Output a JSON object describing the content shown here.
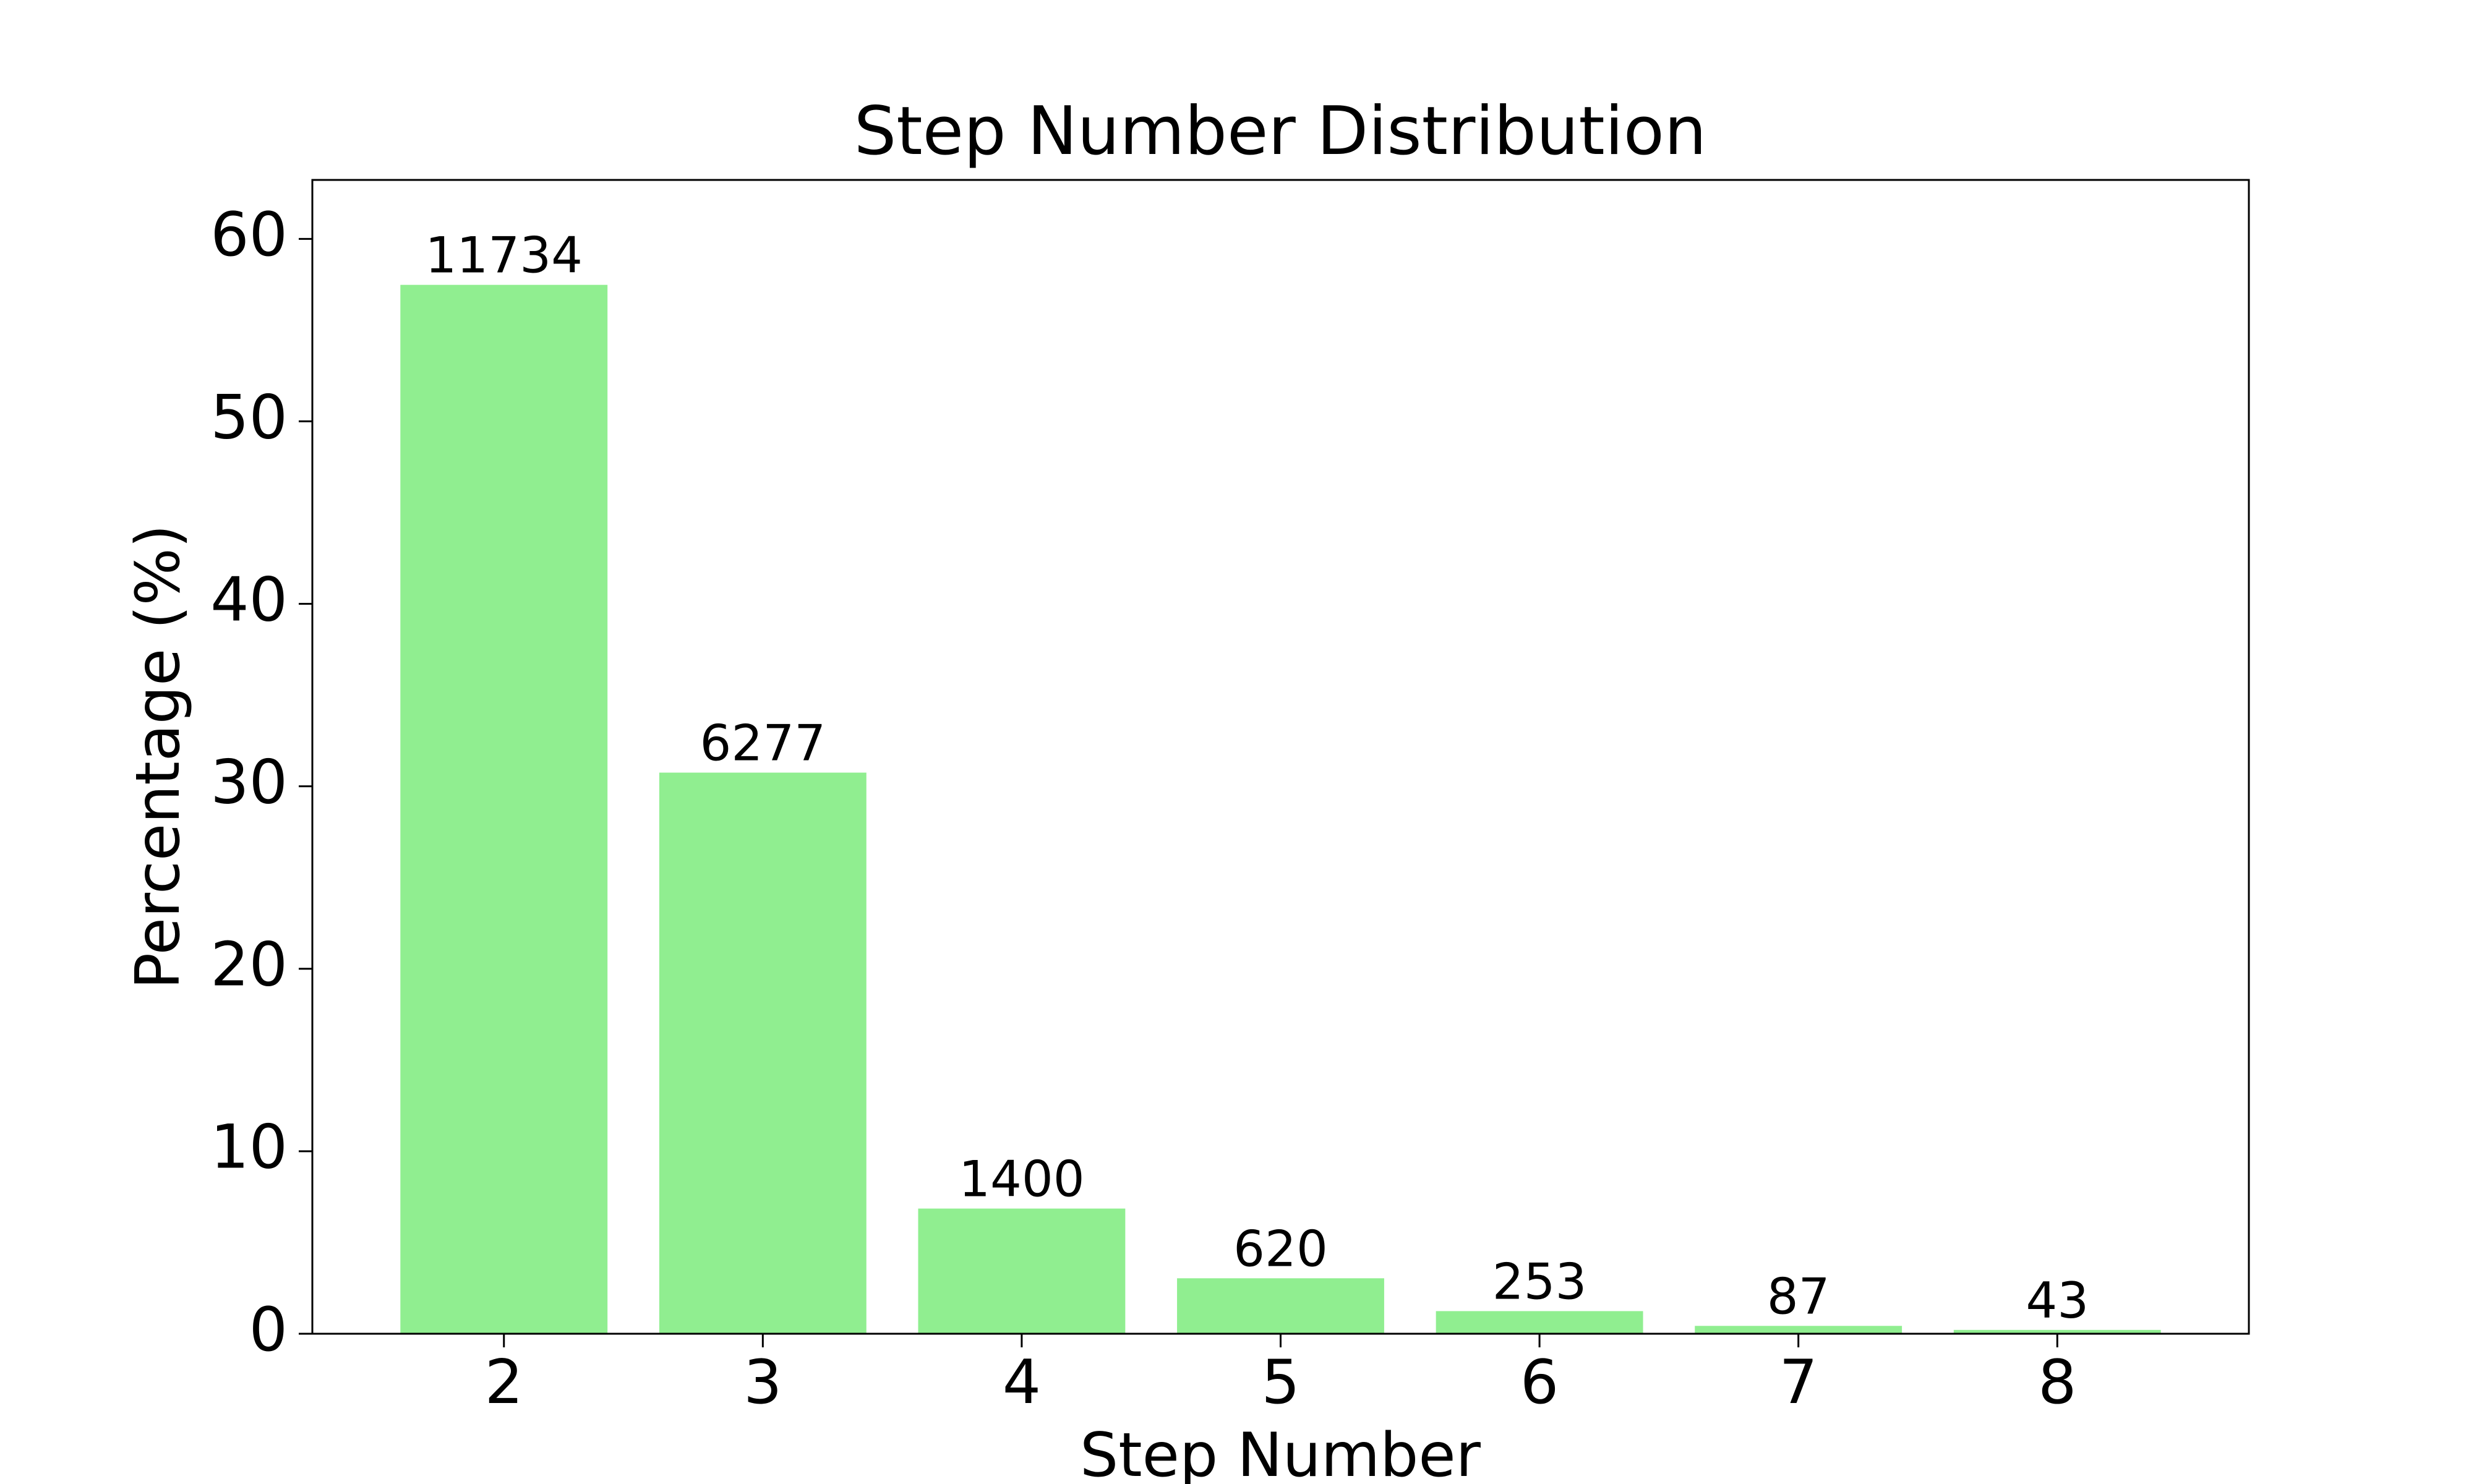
{
  "chart_data": {
    "type": "bar",
    "title": "Step Number Distribution",
    "x_label": "Step Number",
    "y_label": "Percentage (%)",
    "categories": [
      "2",
      "3",
      "4",
      "5",
      "6",
      "7",
      "8"
    ],
    "values": [
      57.48,
      30.75,
      6.86,
      3.04,
      1.24,
      0.43,
      0.21
    ],
    "bar_labels": [
      11734,
      6277,
      1400,
      620,
      253,
      87,
      43
    ],
    "color": "#90ee90",
    "ylim": [
      0,
      63.23
    ],
    "yticks": [
      0,
      10,
      20,
      30,
      40,
      50,
      60
    ],
    "grid": false
  }
}
